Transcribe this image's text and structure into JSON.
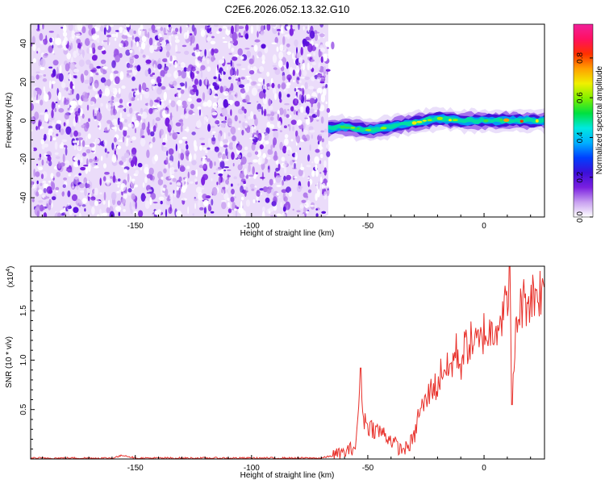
{
  "title": "C2E6.2026.052.13.32.G10",
  "chart_data": [
    {
      "type": "heatmap",
      "name": "spectrogram",
      "xlabel": "Height of straight line (km)",
      "ylabel": "Frequency (Hz)",
      "xlim": [
        -195,
        26
      ],
      "ylim": [
        -50,
        50
      ],
      "xticks": [
        -150,
        -100,
        -50,
        0
      ],
      "yticks": [
        -40,
        -20,
        0,
        20,
        40
      ],
      "noise_region_x": [
        -195,
        -67
      ],
      "signal_track": {
        "x": [
          -67,
          -60,
          -50,
          -40,
          -30,
          -20,
          -10,
          0,
          10,
          20,
          26
        ],
        "freq": [
          -4,
          -3,
          -5,
          -3,
          -1,
          1,
          0,
          0,
          0,
          0,
          0
        ]
      },
      "colorbar": {
        "label": "Normalized spectral amplitude",
        "ticks": [
          0.0,
          0.2,
          0.4,
          0.6,
          0.8
        ],
        "tick_labels": [
          "0.0",
          "0.2",
          "0.4",
          "0.6",
          "0.8"
        ],
        "range": [
          0,
          0.97
        ],
        "colors": [
          "#ffffff",
          "#c8a0f0",
          "#7a1fe0",
          "#3c0fd8",
          "#0040ff",
          "#00b0ff",
          "#00e8e0",
          "#00e040",
          "#80f000",
          "#f0f000",
          "#ffa000",
          "#ff3000",
          "#ff1060",
          "#f0209a"
        ]
      }
    },
    {
      "type": "line",
      "name": "snr",
      "xlabel": "Height of straight line (km)",
      "ylabel": "SNR (10 * v/v)",
      "scale_label": "(x10",
      "scale_exponent": "4",
      "scale_close": ")",
      "xlim": [
        -195,
        26
      ],
      "ylim": [
        0,
        1.95
      ],
      "xticks": [
        -150,
        -100,
        -50,
        0
      ],
      "yticks": [
        0.5,
        1.0,
        1.5
      ],
      "ytick_labels": [
        "0.5",
        "1.0",
        "1.5"
      ],
      "line_color": "#e8302a",
      "series": {
        "x": [
          -195,
          -160,
          -155,
          -150,
          -100,
          -70,
          -60,
          -55,
          -53,
          -52,
          -50,
          -47,
          -44,
          -40,
          -36,
          -33,
          -30,
          -28,
          -25,
          -22,
          -20,
          -18,
          -15,
          -12,
          -10,
          -8,
          -5,
          -2,
          0,
          2,
          5,
          8,
          10,
          11,
          12,
          14,
          16,
          18,
          20,
          22,
          24,
          26
        ],
        "y": [
          0.0,
          0.0,
          0.03,
          0.0,
          0.0,
          0.0,
          0.05,
          0.12,
          0.92,
          0.4,
          0.32,
          0.28,
          0.25,
          0.18,
          0.08,
          0.1,
          0.2,
          0.45,
          0.55,
          0.72,
          0.68,
          0.9,
          0.85,
          1.05,
          0.92,
          1.1,
          1.15,
          1.1,
          1.25,
          1.2,
          1.32,
          1.42,
          1.5,
          1.95,
          0.55,
          1.35,
          1.5,
          1.55,
          1.58,
          1.62,
          1.65,
          1.6
        ]
      }
    }
  ]
}
